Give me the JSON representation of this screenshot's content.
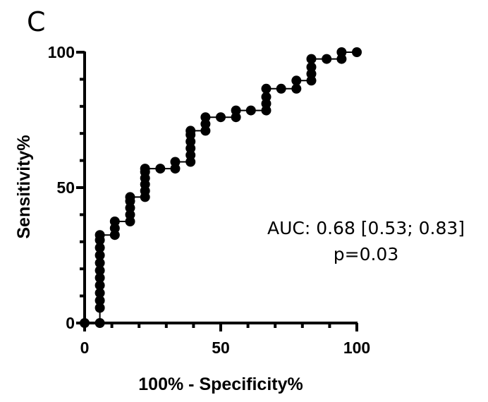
{
  "panel_label": "C",
  "chart_data": {
    "type": "line",
    "title": "",
    "xlabel": "100% - Specificity%",
    "ylabel": "Sensitivity%",
    "xlim": [
      0,
      100
    ],
    "ylim": [
      0,
      100
    ],
    "x_ticks": [
      "0",
      "50",
      "100"
    ],
    "y_ticks": [
      "0",
      "50",
      "100"
    ],
    "grid": false,
    "markers": "filled-circle",
    "colors": {
      "line": "#000000",
      "marker": "#000000"
    },
    "annotation": {
      "auc": "AUC: 0.68 [0.53; 0.83]",
      "p": "p=0.03"
    },
    "series": [
      {
        "points": [
          [
            0,
            0
          ],
          [
            5.6,
            0
          ],
          [
            5.6,
            5.6
          ],
          [
            5.6,
            8.3
          ],
          [
            5.6,
            11.1
          ],
          [
            5.6,
            13.9
          ],
          [
            5.6,
            16.7
          ],
          [
            5.6,
            19.4
          ],
          [
            5.6,
            22.2
          ],
          [
            5.6,
            25
          ],
          [
            5.6,
            27.8
          ],
          [
            5.6,
            30.6
          ],
          [
            5.6,
            32.5
          ],
          [
            11.1,
            32.5
          ],
          [
            11.1,
            35
          ],
          [
            11.1,
            37.5
          ],
          [
            16.7,
            37.5
          ],
          [
            16.7,
            40
          ],
          [
            16.7,
            42.5
          ],
          [
            16.7,
            45
          ],
          [
            16.7,
            46.5
          ],
          [
            22.2,
            46.5
          ],
          [
            22.2,
            48.8
          ],
          [
            22.2,
            51.2
          ],
          [
            22.2,
            53.5
          ],
          [
            22.2,
            55.8
          ],
          [
            22.2,
            57
          ],
          [
            27.8,
            57
          ],
          [
            33.3,
            57
          ],
          [
            33.3,
            59.5
          ],
          [
            38.9,
            59.5
          ],
          [
            38.9,
            62
          ],
          [
            38.9,
            64.5
          ],
          [
            38.9,
            67
          ],
          [
            38.9,
            69.5
          ],
          [
            38.9,
            71
          ],
          [
            44.4,
            71
          ],
          [
            44.4,
            73.5
          ],
          [
            44.4,
            76
          ],
          [
            50,
            76
          ],
          [
            55.6,
            76
          ],
          [
            55.6,
            78.5
          ],
          [
            61.1,
            78.5
          ],
          [
            66.7,
            78.5
          ],
          [
            66.7,
            81
          ],
          [
            66.7,
            83.5
          ],
          [
            66.7,
            86.5
          ],
          [
            72.2,
            86.5
          ],
          [
            77.8,
            86.5
          ],
          [
            77.8,
            89.5
          ],
          [
            83.3,
            89.5
          ],
          [
            83.3,
            92
          ],
          [
            83.3,
            94.5
          ],
          [
            83.3,
            97.5
          ],
          [
            88.9,
            97.5
          ],
          [
            94.4,
            97.5
          ],
          [
            94.4,
            100
          ],
          [
            100,
            100
          ]
        ]
      }
    ]
  }
}
